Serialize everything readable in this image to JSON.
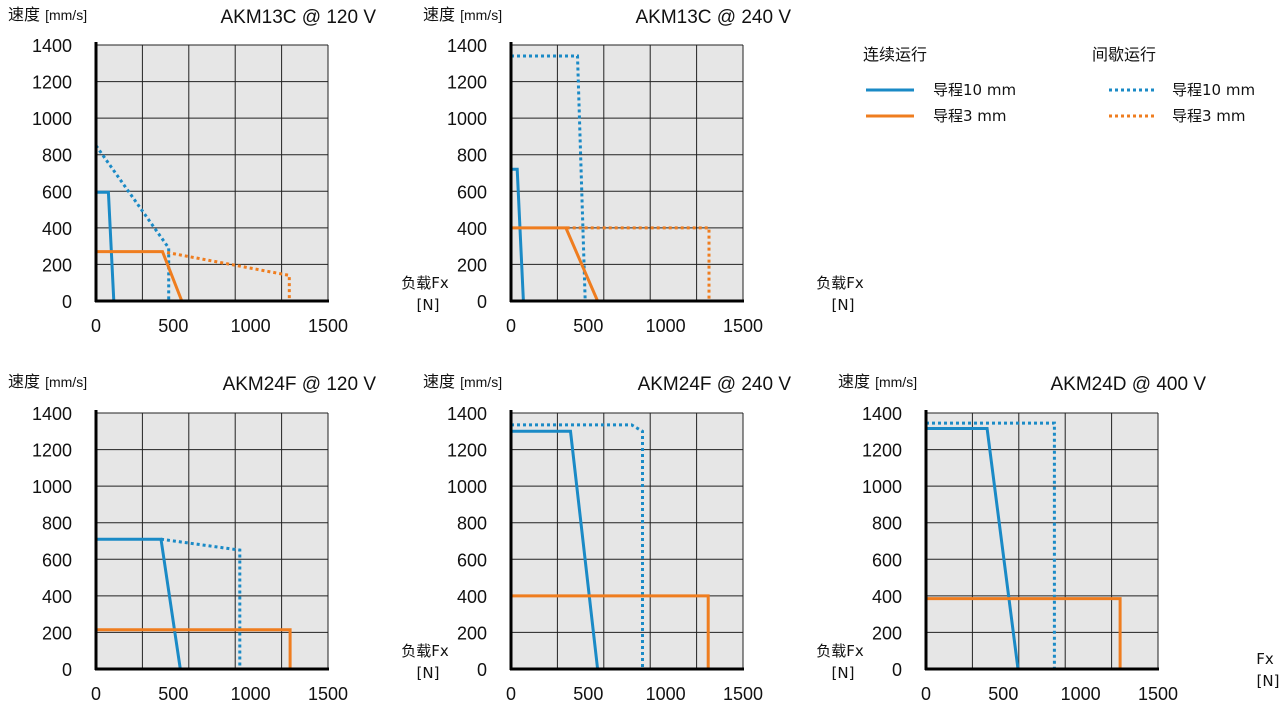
{
  "legend": {
    "continuous_label": "连续运行",
    "intermittent_label": "间歇运行",
    "items": [
      {
        "label": "导程10 mm",
        "color": "#1a8ac6"
      },
      {
        "label": "导程3 mm",
        "color": "#ef7d1f"
      }
    ]
  },
  "colors": {
    "plot_bg": "#e6e6e6",
    "grid": "#222222",
    "lead10": "#1a8ac6",
    "lead3": "#ef7d1f"
  },
  "chart_data": [
    {
      "type": "line",
      "title": "AKM13C @ 120 V",
      "ylabel_main": "速度",
      "ylabel_unit": "[mm/s]",
      "xlabel_main": "负载Fx",
      "xlabel_unit": "[N]",
      "xlim": [
        0,
        1500
      ],
      "ylim": [
        0,
        1400
      ],
      "xticks": [
        "0",
        "500",
        "1000",
        "1500"
      ],
      "yticks": [
        "0",
        "200",
        "400",
        "600",
        "800",
        "1000",
        "1200",
        "1400"
      ],
      "series": [
        {
          "lead": "lead10",
          "style": "continuous",
          "x": [
            0,
            80,
            115
          ],
          "y": [
            595,
            595,
            0
          ]
        },
        {
          "lead": "lead10",
          "style": "intermittent",
          "x": [
            0,
            470,
            470
          ],
          "y": [
            850,
            290,
            0
          ]
        },
        {
          "lead": "lead3",
          "style": "continuous",
          "x": [
            0,
            430,
            555
          ],
          "y": [
            270,
            270,
            0
          ]
        },
        {
          "lead": "lead3",
          "style": "intermittent",
          "x": [
            460,
            1250,
            1250
          ],
          "y": [
            265,
            140,
            0
          ]
        }
      ]
    },
    {
      "type": "line",
      "title": "AKM13C @  240 V",
      "ylabel_main": "速度",
      "ylabel_unit": "[mm/s]",
      "xlabel_main": "负载Fx",
      "xlabel_unit": "[N]",
      "xlim": [
        0,
        1500
      ],
      "ylim": [
        0,
        1400
      ],
      "xticks": [
        "0",
        "500",
        "1000",
        "1500"
      ],
      "yticks": [
        "0",
        "200",
        "400",
        "600",
        "800",
        "1000",
        "1200",
        "1400"
      ],
      "series": [
        {
          "lead": "lead10",
          "style": "continuous",
          "x": [
            0,
            40,
            80
          ],
          "y": [
            720,
            720,
            0
          ]
        },
        {
          "lead": "lead10",
          "style": "intermittent",
          "x": [
            0,
            430,
            480
          ],
          "y": [
            1340,
            1340,
            0
          ]
        },
        {
          "lead": "lead3",
          "style": "continuous",
          "x": [
            0,
            355,
            560
          ],
          "y": [
            400,
            400,
            0
          ]
        },
        {
          "lead": "lead3",
          "style": "intermittent",
          "x": [
            360,
            1280,
            1280
          ],
          "y": [
            400,
            400,
            0
          ]
        }
      ]
    },
    {
      "type": "line",
      "title": "AKM24F @ 120 V",
      "ylabel_main": "速度",
      "ylabel_unit": "[mm/s]",
      "xlabel_main": "负载Fx",
      "xlabel_unit": "[N]",
      "xlim": [
        0,
        1500
      ],
      "ylim": [
        0,
        1400
      ],
      "xticks": [
        "0",
        "500",
        "1000",
        "1500"
      ],
      "yticks": [
        "0",
        "200",
        "400",
        "600",
        "800",
        "1000",
        "1200",
        "1400"
      ],
      "series": [
        {
          "lead": "lead10",
          "style": "continuous",
          "x": [
            0,
            420,
            545
          ],
          "y": [
            710,
            710,
            0
          ]
        },
        {
          "lead": "lead10",
          "style": "intermittent",
          "x": [
            420,
            930,
            930
          ],
          "y": [
            710,
            650,
            0
          ]
        },
        {
          "lead": "lead3",
          "style": "continuous",
          "x": [
            0,
            1255,
            1255
          ],
          "y": [
            215,
            215,
            0
          ]
        }
      ]
    },
    {
      "type": "line",
      "title": "AKM24F @ 240 V",
      "ylabel_main": "速度",
      "ylabel_unit": "[mm/s]",
      "xlabel_main": "负载Fx",
      "xlabel_unit": "[N]",
      "xlim": [
        0,
        1500
      ],
      "ylim": [
        0,
        1400
      ],
      "xticks": [
        "0",
        "500",
        "1000",
        "1500"
      ],
      "yticks": [
        "0",
        "200",
        "400",
        "600",
        "800",
        "1000",
        "1200",
        "1400"
      ],
      "series": [
        {
          "lead": "lead10",
          "style": "continuous",
          "x": [
            0,
            385,
            560
          ],
          "y": [
            1300,
            1300,
            0
          ]
        },
        {
          "lead": "lead10",
          "style": "intermittent",
          "x": [
            0,
            780,
            850,
            850
          ],
          "y": [
            1335,
            1335,
            1300,
            0
          ]
        },
        {
          "lead": "lead3",
          "style": "continuous",
          "x": [
            0,
            1275,
            1275
          ],
          "y": [
            400,
            400,
            0
          ]
        }
      ]
    },
    {
      "type": "line",
      "title": "AKM24D @ 400 V",
      "ylabel_main": "速度",
      "ylabel_unit": "[mm/s]",
      "xlabel_main": "Fx",
      "xlabel_unit": "[N]",
      "xlim": [
        0,
        1500
      ],
      "ylim": [
        0,
        1400
      ],
      "xticks": [
        "0",
        "500",
        "1000",
        "1500"
      ],
      "yticks": [
        "0",
        "200",
        "400",
        "600",
        "800",
        "1000",
        "1200",
        "1400"
      ],
      "series": [
        {
          "lead": "lead10",
          "style": "continuous",
          "x": [
            0,
            395,
            595
          ],
          "y": [
            1315,
            1315,
            0
          ]
        },
        {
          "lead": "lead10",
          "style": "intermittent",
          "x": [
            0,
            830,
            830
          ],
          "y": [
            1345,
            1345,
            0
          ]
        },
        {
          "lead": "lead3",
          "style": "continuous",
          "x": [
            0,
            1255,
            1255
          ],
          "y": [
            385,
            385,
            0
          ]
        }
      ]
    }
  ]
}
